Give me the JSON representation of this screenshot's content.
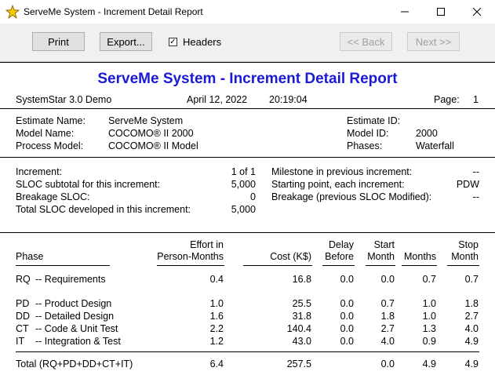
{
  "window": {
    "title": "ServeMe System - Increment Detail Report",
    "minimize": "—",
    "maximize": "☐",
    "close": "✕"
  },
  "toolbar": {
    "print": "Print",
    "export": "Export...",
    "headers_label": "Headers",
    "headers_checked": true,
    "back": "<< Back",
    "next": "Next >>"
  },
  "report": {
    "title": "ServeMe System - Increment Detail Report",
    "product": "SystemStar 3.0 Demo",
    "date": "April 12, 2022",
    "time": "20:19:04",
    "page_label": "Page:",
    "page_number": "1"
  },
  "estimate": {
    "name_label": "Estimate Name:",
    "name": "ServeMe System",
    "model_label": "Model Name:",
    "model": "COCOMO® II 2000",
    "process_label": "Process Model:",
    "process": "COCOMO® II Model",
    "id_label": "Estimate ID:",
    "id": "",
    "model_id_label": "Model ID:",
    "model_id": "2000",
    "phases_label": "Phases:",
    "phases": "Waterfall"
  },
  "increment": {
    "increment_label": "Increment:",
    "increment_value": "1 of  1",
    "sloc_subtotal_label": "SLOC subtotal for this increment:",
    "sloc_subtotal": "5,000",
    "breakage_label": "Breakage SLOC:",
    "breakage": "0",
    "total_sloc_label": "Total SLOC developed in this increment:",
    "total_sloc": "5,000",
    "milestone_label": "Milestone in previous increment:",
    "milestone": "--",
    "starting_point_label": "Starting point, each increment:",
    "starting_point": "PDW",
    "breakage_prev_label": "Breakage (previous SLOC Modified):",
    "breakage_prev": "--"
  },
  "table": {
    "headers": {
      "phase": "Phase",
      "effort_1": "Effort in",
      "effort_2": "Person-Months",
      "cost": "Cost (K$)",
      "delay_1": "Delay",
      "delay_2": "Before",
      "start_1": "Start",
      "start_2": "Month",
      "months": "Months",
      "stop_1": "Stop",
      "stop_2": "Month"
    },
    "rows": [
      {
        "code": "RQ",
        "name": "--  Requirements",
        "effort": "0.4",
        "cost": "16.8",
        "delay": "0.0",
        "start": "0.0",
        "months": "0.7",
        "stop": "0.7"
      },
      {
        "code": "PD",
        "name": "--  Product Design",
        "effort": "1.0",
        "cost": "25.5",
        "delay": "0.0",
        "start": "0.7",
        "months": "1.0",
        "stop": "1.8"
      },
      {
        "code": "DD",
        "name": "--  Detailed Design",
        "effort": "1.6",
        "cost": "31.8",
        "delay": "0.0",
        "start": "1.8",
        "months": "1.0",
        "stop": "2.7"
      },
      {
        "code": "CT",
        "name": "--  Code & Unit Test",
        "effort": "2.2",
        "cost": "140.4",
        "delay": "0.0",
        "start": "2.7",
        "months": "1.3",
        "stop": "4.0"
      },
      {
        "code": "IT",
        "name": "--  Integration & Test",
        "effort": "1.2",
        "cost": "43.0",
        "delay": "0.0",
        "start": "4.0",
        "months": "0.9",
        "stop": "4.9"
      }
    ],
    "total": {
      "label": "Total (RQ+PD+DD+CT+IT)",
      "effort": "6.4",
      "cost": "257.5",
      "delay": "",
      "start": "0.0",
      "months": "4.9",
      "stop": "4.9"
    }
  }
}
